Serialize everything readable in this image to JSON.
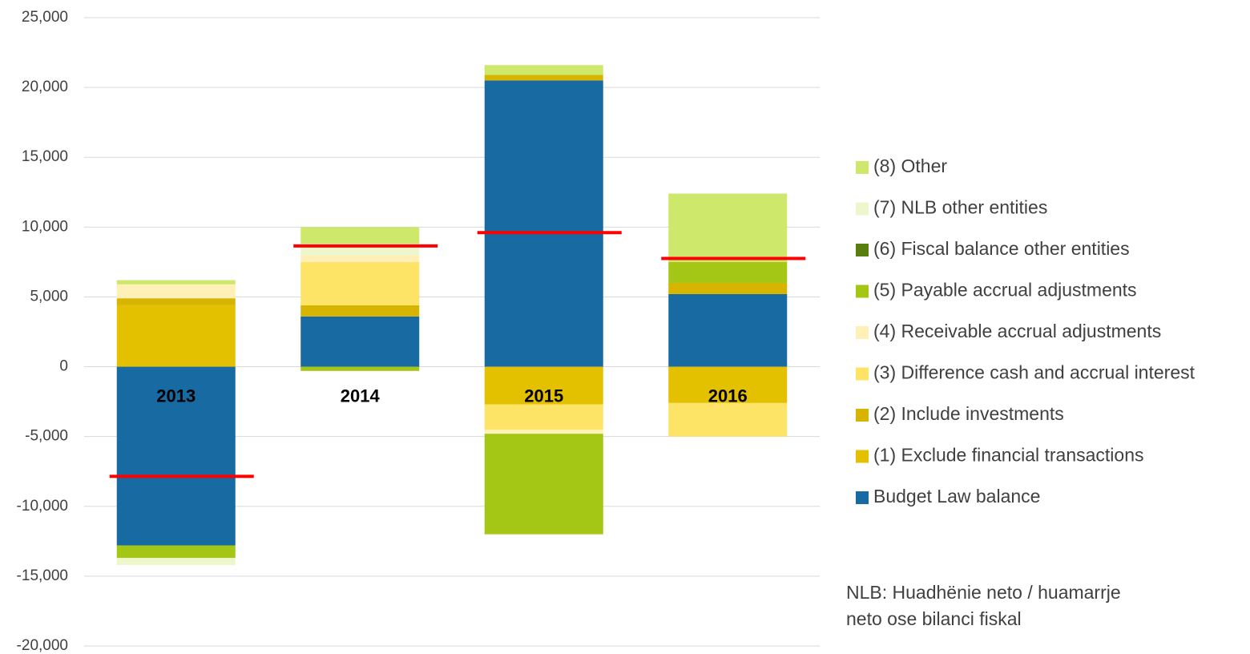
{
  "chart_data": {
    "type": "bar",
    "stacked": true,
    "categories": [
      "2013",
      "2014",
      "2015",
      "2016"
    ],
    "series": [
      {
        "name": "Budget Law balance",
        "color": "#176aa2",
        "values": [
          -12800,
          3600,
          20500,
          5200
        ]
      },
      {
        "name": "(1) Exclude financial transactions",
        "color": "#e3c100",
        "values": [
          4400,
          0,
          -2700,
          -2600
        ]
      },
      {
        "name": "(2) Include investments",
        "color": "#d6b400",
        "values": [
          500,
          800,
          400,
          800
        ]
      },
      {
        "name": "(3) Difference cash and accrual interest",
        "color": "#fde466",
        "values": [
          0,
          3100,
          -1800,
          -2400
        ]
      },
      {
        "name": "(4) Receivable accrual adjustments",
        "color": "#fff0b8",
        "values": [
          1000,
          500,
          -300,
          0
        ]
      },
      {
        "name": "(5) Payable accrual adjustments",
        "color": "#a4c615",
        "values": [
          -900,
          -300,
          -7200,
          1500
        ]
      },
      {
        "name": "(6) Fiscal balance other entities",
        "color": "#5a7d0f",
        "values": [
          0,
          0,
          0,
          0
        ]
      },
      {
        "name": "(7) NLB other entities",
        "color": "#eef6cc",
        "values": [
          -500,
          800,
          0,
          0
        ]
      },
      {
        "name": "(8) Other",
        "color": "#cde86a",
        "values": [
          300,
          1200,
          700,
          4900
        ]
      }
    ],
    "nlb_markers": {
      "color": "#ff0000",
      "values": [
        -7850,
        8650,
        9600,
        7750
      ]
    },
    "ylim": [
      -20000,
      25000
    ],
    "yticks": [
      {
        "value": -20000,
        "label": "-20,000"
      },
      {
        "value": -15000,
        "label": "-15,000"
      },
      {
        "value": -10000,
        "label": "-10,000"
      },
      {
        "value": -5000,
        "label": "-5,000"
      },
      0,
      {
        "value": 5000,
        "label": "5,000"
      },
      {
        "value": 10000,
        "label": "10,000"
      },
      {
        "value": 15000,
        "label": "15,000"
      },
      {
        "value": 20000,
        "label": "20,000"
      },
      {
        "value": 25000,
        "label": "25,000"
      }
    ],
    "grid": true,
    "legend": "right",
    "annotation": [
      "NLB: Huadhënie neto / huamarrje",
      "neto  ose bilanci fiskal"
    ]
  }
}
